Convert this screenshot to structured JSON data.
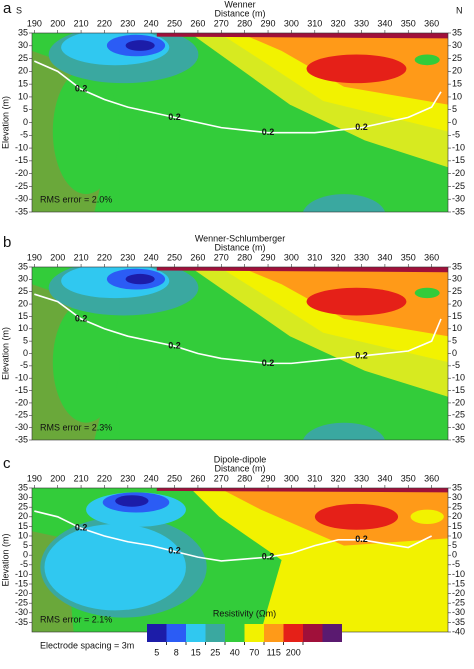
{
  "chart_data": [
    {
      "type": "contour",
      "panel_label": "a",
      "left_label": "S",
      "right_label": "N",
      "title": "Wenner",
      "xlabel": "Distance (m)",
      "ylabel": "Elevation (m)",
      "annotation": "RMS error = 2.0%",
      "xlim": [
        189,
        367
      ],
      "ylim": [
        -35,
        35
      ],
      "y2lim": [
        -35,
        35
      ],
      "xticks": [
        190,
        200,
        210,
        220,
        230,
        240,
        250,
        260,
        270,
        280,
        290,
        300,
        310,
        320,
        330,
        340,
        350,
        360
      ],
      "yticks": [
        35,
        30,
        25,
        20,
        15,
        10,
        5,
        0,
        -5,
        -10,
        -15,
        -20,
        -25,
        -30,
        -35
      ],
      "y2ticks": [
        35,
        30,
        25,
        20,
        15,
        10,
        5,
        0,
        -5,
        -10,
        -15,
        -20,
        -25,
        -30,
        -35
      ],
      "series": [
        {
          "name": "0.2",
          "color": "#ffffff",
          "x": [
            190,
            200,
            210,
            220,
            230,
            240,
            250,
            260,
            270,
            280,
            290,
            300,
            310,
            320,
            330,
            340,
            350,
            360,
            364
          ],
          "values": [
            24,
            20,
            13,
            9,
            6,
            4,
            2,
            0,
            -2,
            -3,
            -4,
            -4,
            -4,
            -3,
            -2,
            0,
            2,
            6,
            12
          ]
        }
      ]
    },
    {
      "type": "contour",
      "panel_label": "b",
      "title": "Wenner-Schlumberger",
      "xlabel": "Distance (m)",
      "ylabel": "Elevation (m)",
      "annotation": "RMS error = 2.3%",
      "xlim": [
        189,
        367
      ],
      "ylim": [
        -35,
        35
      ],
      "y2lim": [
        -35,
        35
      ],
      "xticks": [
        190,
        200,
        210,
        220,
        230,
        240,
        250,
        260,
        270,
        280,
        290,
        300,
        310,
        320,
        330,
        340,
        350,
        360
      ],
      "yticks": [
        35,
        30,
        25,
        20,
        15,
        10,
        5,
        0,
        -5,
        -10,
        -15,
        -20,
        -25,
        -30,
        -35
      ],
      "y2ticks": [
        35,
        30,
        25,
        20,
        15,
        10,
        5,
        0,
        -5,
        -10,
        -15,
        -20,
        -25,
        -30,
        -35
      ],
      "series": [
        {
          "name": "0.2",
          "color": "#ffffff",
          "x": [
            190,
            200,
            210,
            220,
            230,
            240,
            250,
            260,
            270,
            280,
            290,
            300,
            310,
            320,
            330,
            340,
            350,
            360,
            364
          ],
          "values": [
            24,
            21,
            14,
            10,
            7,
            5,
            3,
            0,
            -2,
            -3,
            -4,
            -4,
            -3,
            -2,
            -1,
            0,
            1,
            5,
            14
          ]
        }
      ]
    },
    {
      "type": "contour",
      "panel_label": "c",
      "title": "Dipole-dipole",
      "xlabel": "Distance (m)",
      "ylabel": "Elevation (m)",
      "annotation": "RMS error = 2.1%",
      "xlim": [
        189,
        367
      ],
      "ylim": [
        -40,
        35
      ],
      "y2lim": [
        -40,
        35
      ],
      "xticks": [
        190,
        200,
        210,
        220,
        230,
        240,
        250,
        260,
        270,
        280,
        290,
        300,
        310,
        320,
        330,
        340,
        350,
        360
      ],
      "yticks": [
        35,
        30,
        25,
        20,
        15,
        10,
        5,
        0,
        -5,
        -10,
        -15,
        -20,
        -25,
        -30,
        -35
      ],
      "y2ticks": [
        35,
        30,
        25,
        20,
        15,
        10,
        5,
        0,
        -5,
        -10,
        -15,
        -20,
        -25,
        -30,
        -35,
        -40
      ],
      "series": [
        {
          "name": "0.2",
          "color": "#ffffff",
          "x": [
            190,
            200,
            210,
            220,
            230,
            240,
            250,
            260,
            270,
            280,
            290,
            300,
            310,
            320,
            330,
            340,
            350,
            360
          ],
          "values": [
            23,
            20,
            14,
            10,
            7,
            5,
            2,
            -1,
            -3,
            -2,
            -1,
            1,
            5,
            8,
            8,
            6,
            4,
            10
          ]
        }
      ]
    }
  ],
  "colorbar": {
    "title": "Resistivity (Ωm)",
    "ticks": [
      5,
      8,
      15,
      25,
      40,
      70,
      115,
      200
    ],
    "colors": [
      "#1c1ca8",
      "#2b5cf5",
      "#30c8f0",
      "#3aa8a0",
      "#33cc3a",
      "#f2f200",
      "#ff9a18",
      "#e52018",
      "#a0103a",
      "#5a1a70"
    ]
  },
  "note": "Electrode spacing = 3m"
}
